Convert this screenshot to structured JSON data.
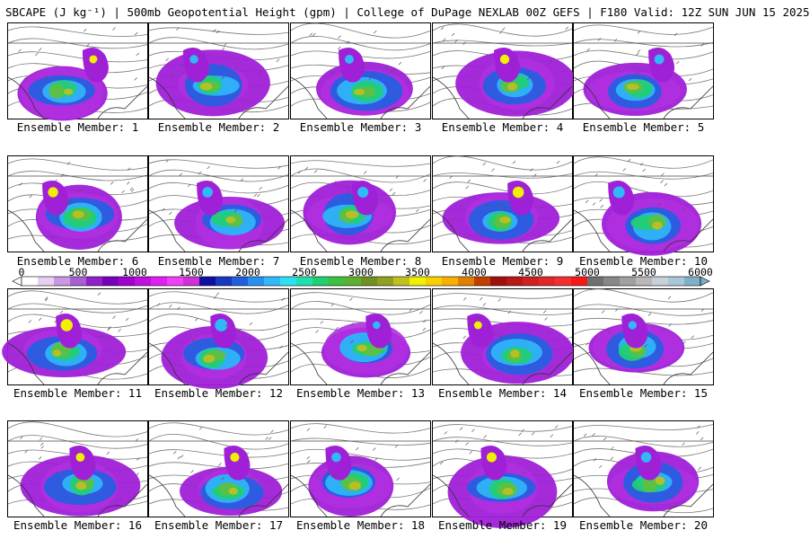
{
  "title": "SBCAPE (J kg⁻¹) | 500mb Geopotential Height (gpm) | College of DuPage NEXLAB 00Z GEFS | F180 Valid: 12Z SUN JUN 15 2025",
  "caption_prefix": "Ensemble Member: ",
  "members": [
    1,
    2,
    3,
    4,
    5,
    6,
    7,
    8,
    9,
    10,
    11,
    12,
    13,
    14,
    15,
    16,
    17,
    18,
    19,
    20
  ],
  "colorbar": {
    "labels": [
      "0",
      "500",
      "1000",
      "1500",
      "2000",
      "2500",
      "3000",
      "3500",
      "4000",
      "4500",
      "5000",
      "5500",
      "6000"
    ],
    "colors": [
      "#ffffff",
      "#e8d0f0",
      "#c898e0",
      "#a860d0",
      "#9020c8",
      "#7800b8",
      "#a000d0",
      "#c010e0",
      "#e020f0",
      "#f040f8",
      "#d030d8",
      "#1010a0",
      "#1838c0",
      "#2060e0",
      "#2890f0",
      "#30b8f8",
      "#30e0f0",
      "#20e0b0",
      "#20d070",
      "#40c040",
      "#60b030",
      "#709020",
      "#90a020",
      "#c0c020",
      "#f0f000",
      "#f8d000",
      "#f8b000",
      "#e08000",
      "#c04000",
      "#a01010",
      "#b81818",
      "#d02020",
      "#e02828",
      "#f03030",
      "#f81818",
      "#707070",
      "#888888",
      "#a0a0a0",
      "#b8b8b8",
      "#c8d0d8",
      "#a8c8d8",
      "#80b0c8"
    ]
  }
}
